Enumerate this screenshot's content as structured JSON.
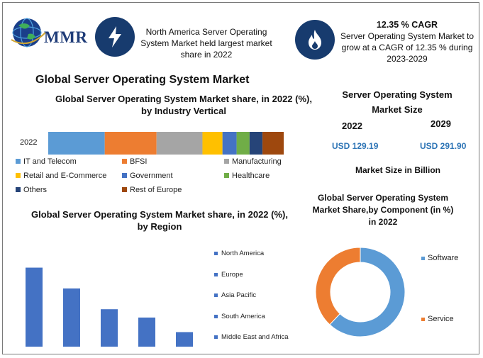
{
  "logo": {
    "text": "MMR"
  },
  "facts": {
    "fact1": "North America Server Operating System Market held largest market share in 2022",
    "fact2_title": "12.35 % CAGR",
    "fact2": "Server Operating System Market to grow at a CAGR of 12.35 % during 2023-2029"
  },
  "icons": {
    "fact1": "lightning-icon",
    "fact2": "flame-icon",
    "logo": "globe-icon"
  },
  "main_title": "Global Server Operating System Market",
  "market_size": {
    "title": "Server Operating System Market Size",
    "year1": "2022",
    "year2": "2029",
    "value1": "USD 129.19",
    "value2": "USD 291.90",
    "unit_label": "Market Size in Billion"
  },
  "colors": {
    "navy": "#173b6e",
    "accent_blue": "#2e75b6",
    "logo_blue": "#1f3c78"
  },
  "chart_data": [
    {
      "type": "bar",
      "orientation": "horizontal-stacked",
      "title": "Global Server Operating System Market share, in 2022 (%), by Industry Vertical",
      "categories": [
        "2022"
      ],
      "series": [
        {
          "name": "IT and Telecom",
          "values": [
            24
          ],
          "color": "#5b9bd5"
        },
        {
          "name": "BFSI",
          "values": [
            22
          ],
          "color": "#ed7d31"
        },
        {
          "name": "Manufacturing",
          "values": [
            19.5
          ],
          "color": "#a5a5a5"
        },
        {
          "name": "Retail and E-Commerce",
          "values": [
            8.5
          ],
          "color": "#ffc000"
        },
        {
          "name": "Government",
          "values": [
            6
          ],
          "color": "#4472c4"
        },
        {
          "name": "Healthcare",
          "values": [
            5.5
          ],
          "color": "#70ad47"
        },
        {
          "name": "Others",
          "values": [
            5.5
          ],
          "color": "#264478"
        },
        {
          "name": "Rest of Europe",
          "values": [
            9
          ],
          "color": "#9e480e"
        }
      ],
      "legend": "bottom"
    },
    {
      "type": "bar",
      "title": "Global Server Operating System Market share, in 2022 (%), by Region",
      "categories": [
        "North America",
        "Europe",
        "Asia Pacific",
        "South America",
        "Middle East and Africa"
      ],
      "values": [
        38,
        28,
        18,
        14,
        7
      ],
      "ylim": [
        0,
        45
      ],
      "color": "#4472c4",
      "legend": "right"
    },
    {
      "type": "pie",
      "variant": "donut",
      "title": "Global Server Operating System Market Share,by Component (in %) in 2022",
      "categories": [
        "Software",
        "Service"
      ],
      "values": [
        62,
        38
      ],
      "colors": [
        "#5b9bd5",
        "#ed7d31"
      ],
      "legend": "right"
    }
  ]
}
